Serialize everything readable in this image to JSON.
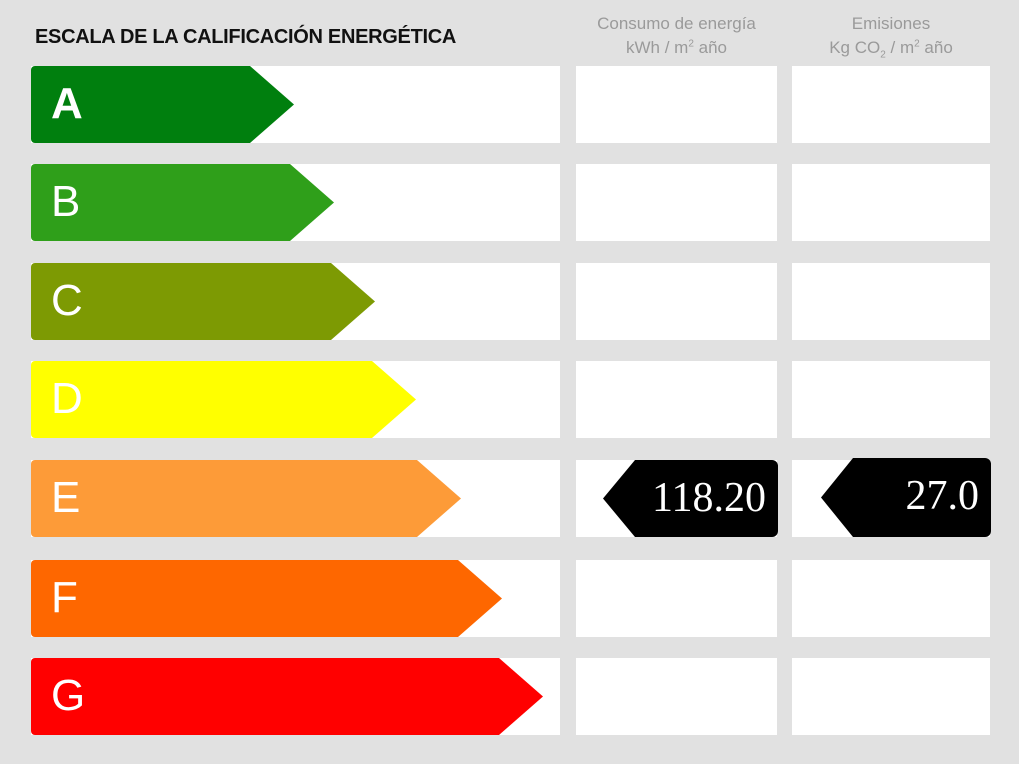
{
  "title": "ESCALA DE LA CALIFICACIÓN ENERGÉTICA",
  "columns": {
    "consumo": {
      "line1": "Consumo de energía",
      "line2_pre": "kWh / m",
      "line2_sup": "2",
      "line2_post": " año"
    },
    "emisiones": {
      "line1": "Emisiones",
      "line2_pre": "Kg CO",
      "line2_sub": "2",
      "line2_mid": " / m",
      "line2_sup": "2",
      "line2_post": " año"
    }
  },
  "ratings": [
    {
      "letter": "A",
      "color": "#007f0e"
    },
    {
      "letter": "B",
      "color": "#2f9f1a"
    },
    {
      "letter": "C",
      "color": "#7d9a03"
    },
    {
      "letter": "D",
      "color": "#ffff00"
    },
    {
      "letter": "E",
      "color": "#fd9b38"
    },
    {
      "letter": "F",
      "color": "#fe6700"
    },
    {
      "letter": "G",
      "color": "#ff0000"
    }
  ],
  "current": {
    "rating": "E",
    "consumo": "118.20",
    "emisiones": "27.0"
  }
}
